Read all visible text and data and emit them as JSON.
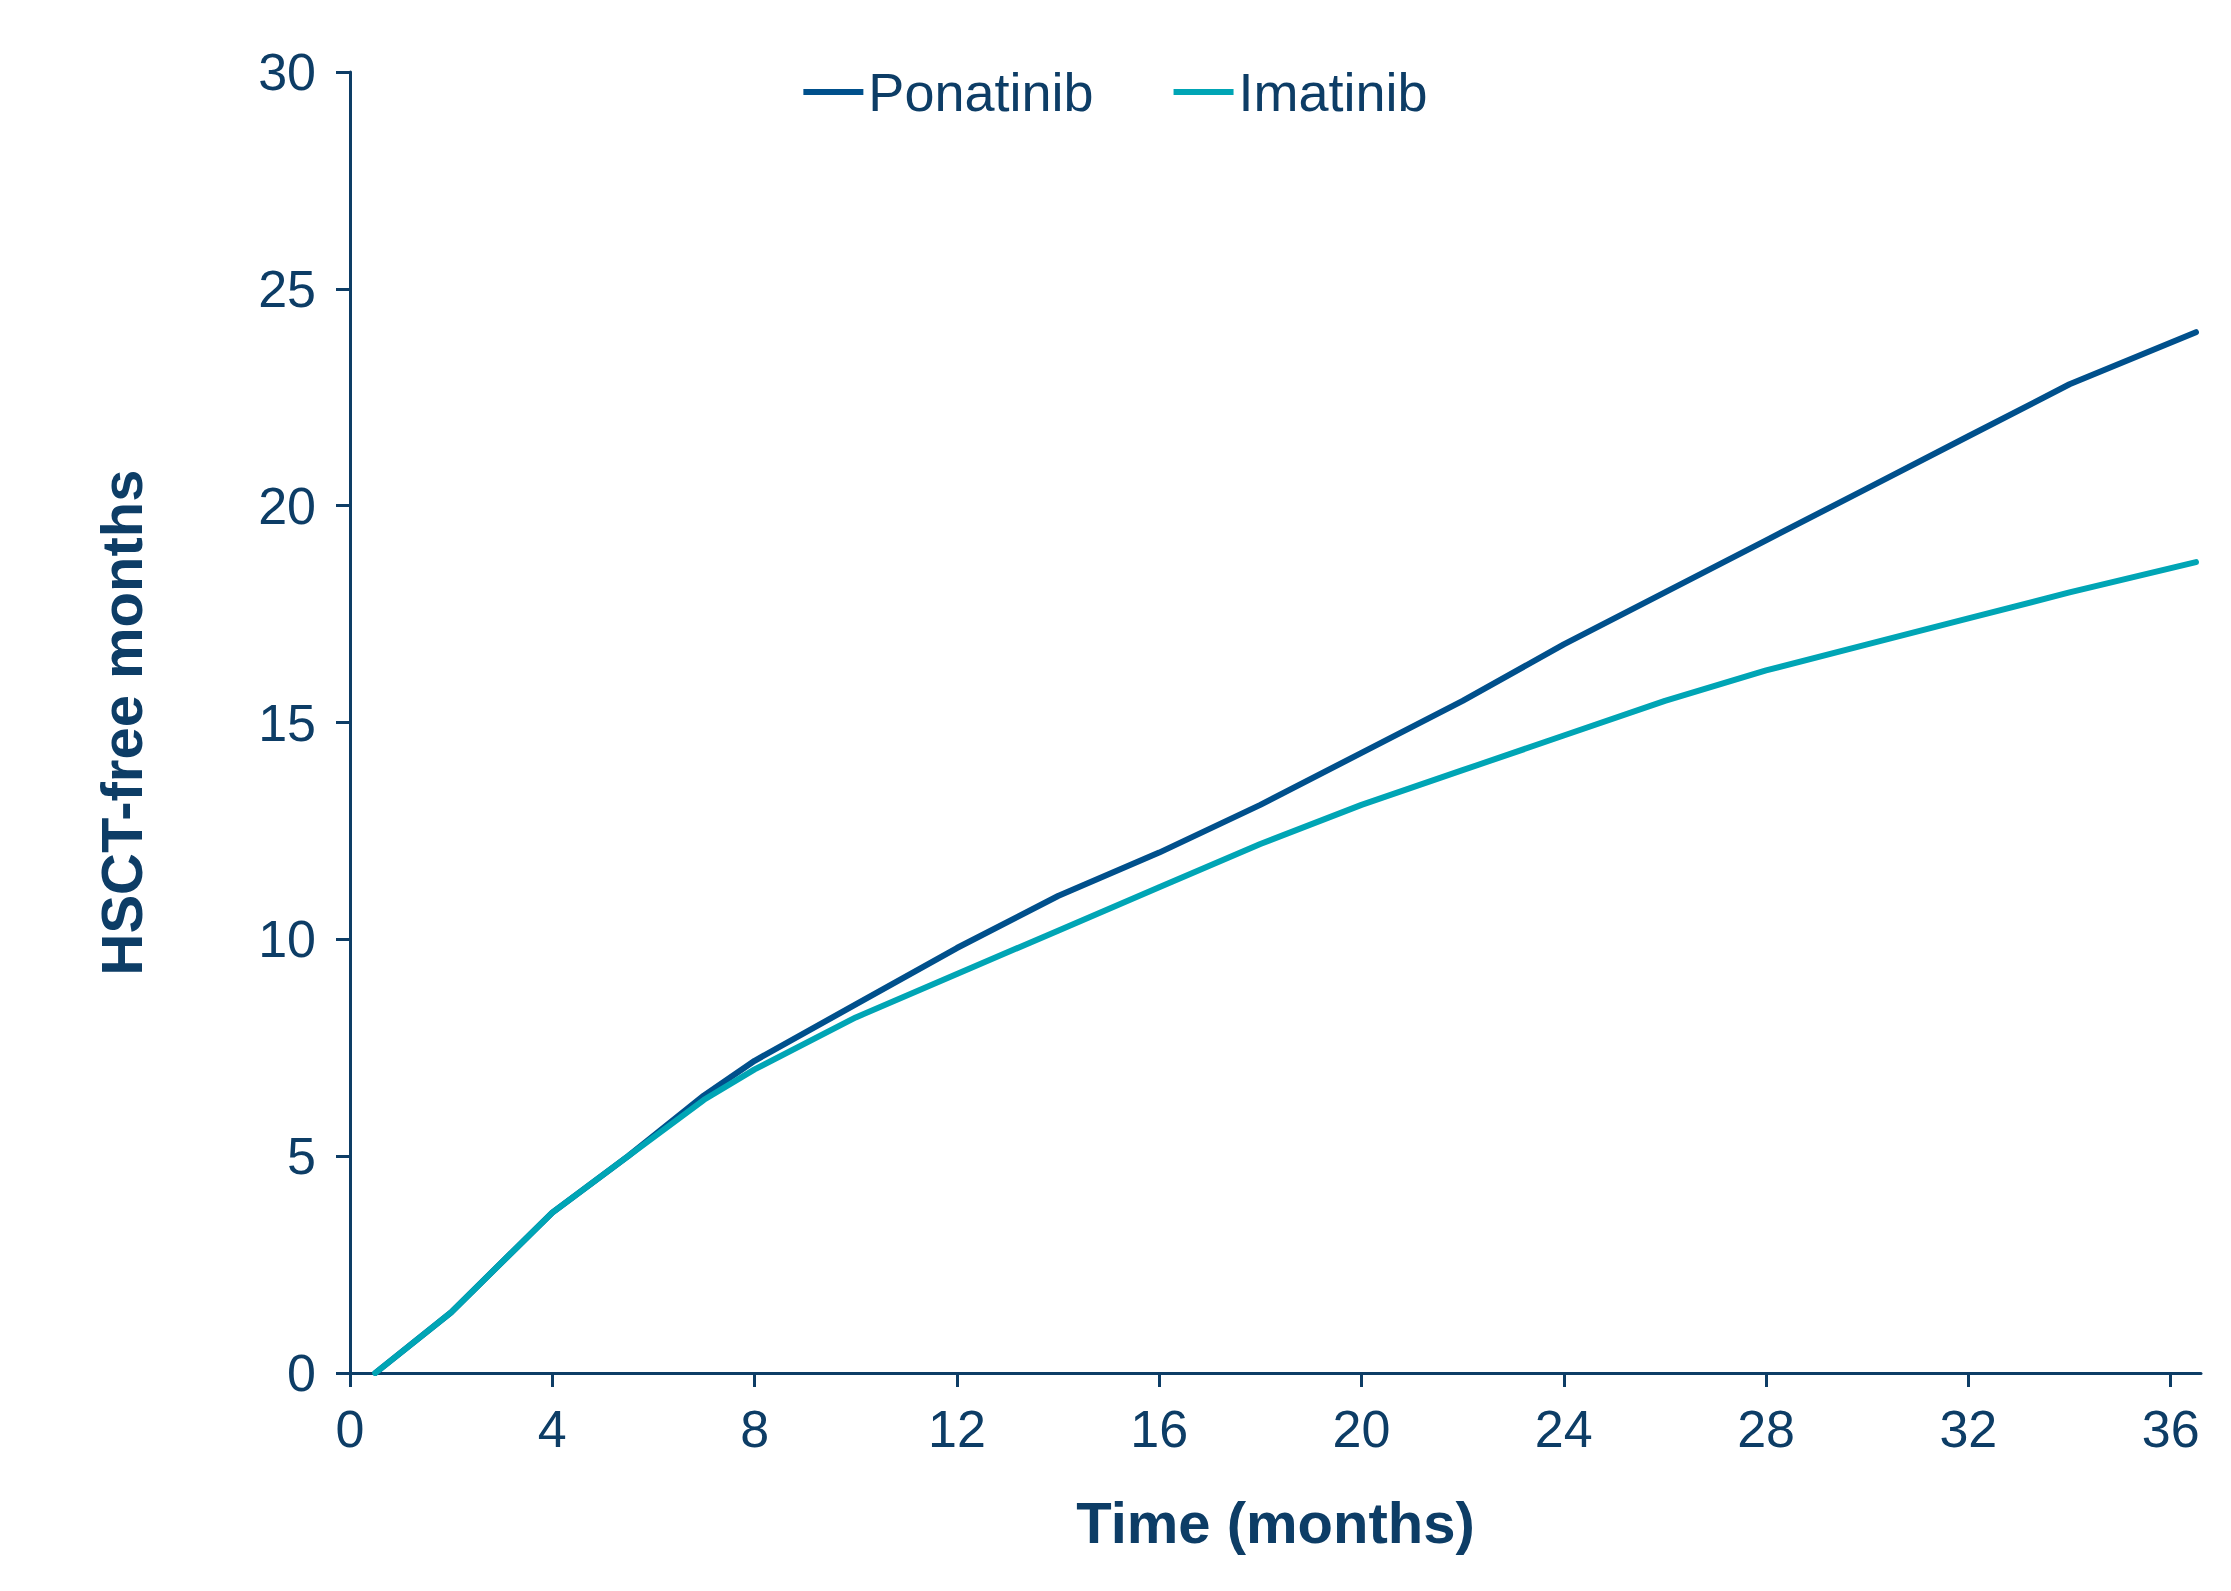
{
  "chart_data": {
    "type": "line",
    "xlabel": "Time (months)",
    "ylabel": "HSCT-free months",
    "xlim": [
      0,
      36.6
    ],
    "xticks": [
      0,
      4,
      8,
      12,
      16,
      20,
      24,
      28,
      32,
      36
    ],
    "ylim": [
      0,
      30
    ],
    "yticks": [
      0,
      5,
      10,
      15,
      20,
      25,
      30
    ],
    "x": [
      0.5,
      2,
      4,
      5.5,
      7,
      8,
      10,
      12,
      14,
      16,
      18,
      20,
      22,
      24,
      26,
      28,
      30,
      32,
      34,
      36.5
    ],
    "series": [
      {
        "name": "Ponatinib",
        "color": "#00508c",
        "values": [
          0,
          1.4,
          3.7,
          5.0,
          6.4,
          7.2,
          8.5,
          9.8,
          11.0,
          12.0,
          13.1,
          14.3,
          15.5,
          16.8,
          18.0,
          19.2,
          20.4,
          21.6,
          22.8,
          24.0
        ]
      },
      {
        "name": "Imatinib",
        "color": "#00a5b5",
        "values": [
          0,
          1.4,
          3.7,
          5.0,
          6.3,
          7.0,
          8.2,
          9.2,
          10.2,
          11.2,
          12.2,
          13.1,
          13.9,
          14.7,
          15.5,
          16.2,
          16.8,
          17.4,
          18.0,
          18.7
        ]
      }
    ],
    "grid": false,
    "legend": "top",
    "marker": "none",
    "line_style": "solid"
  }
}
